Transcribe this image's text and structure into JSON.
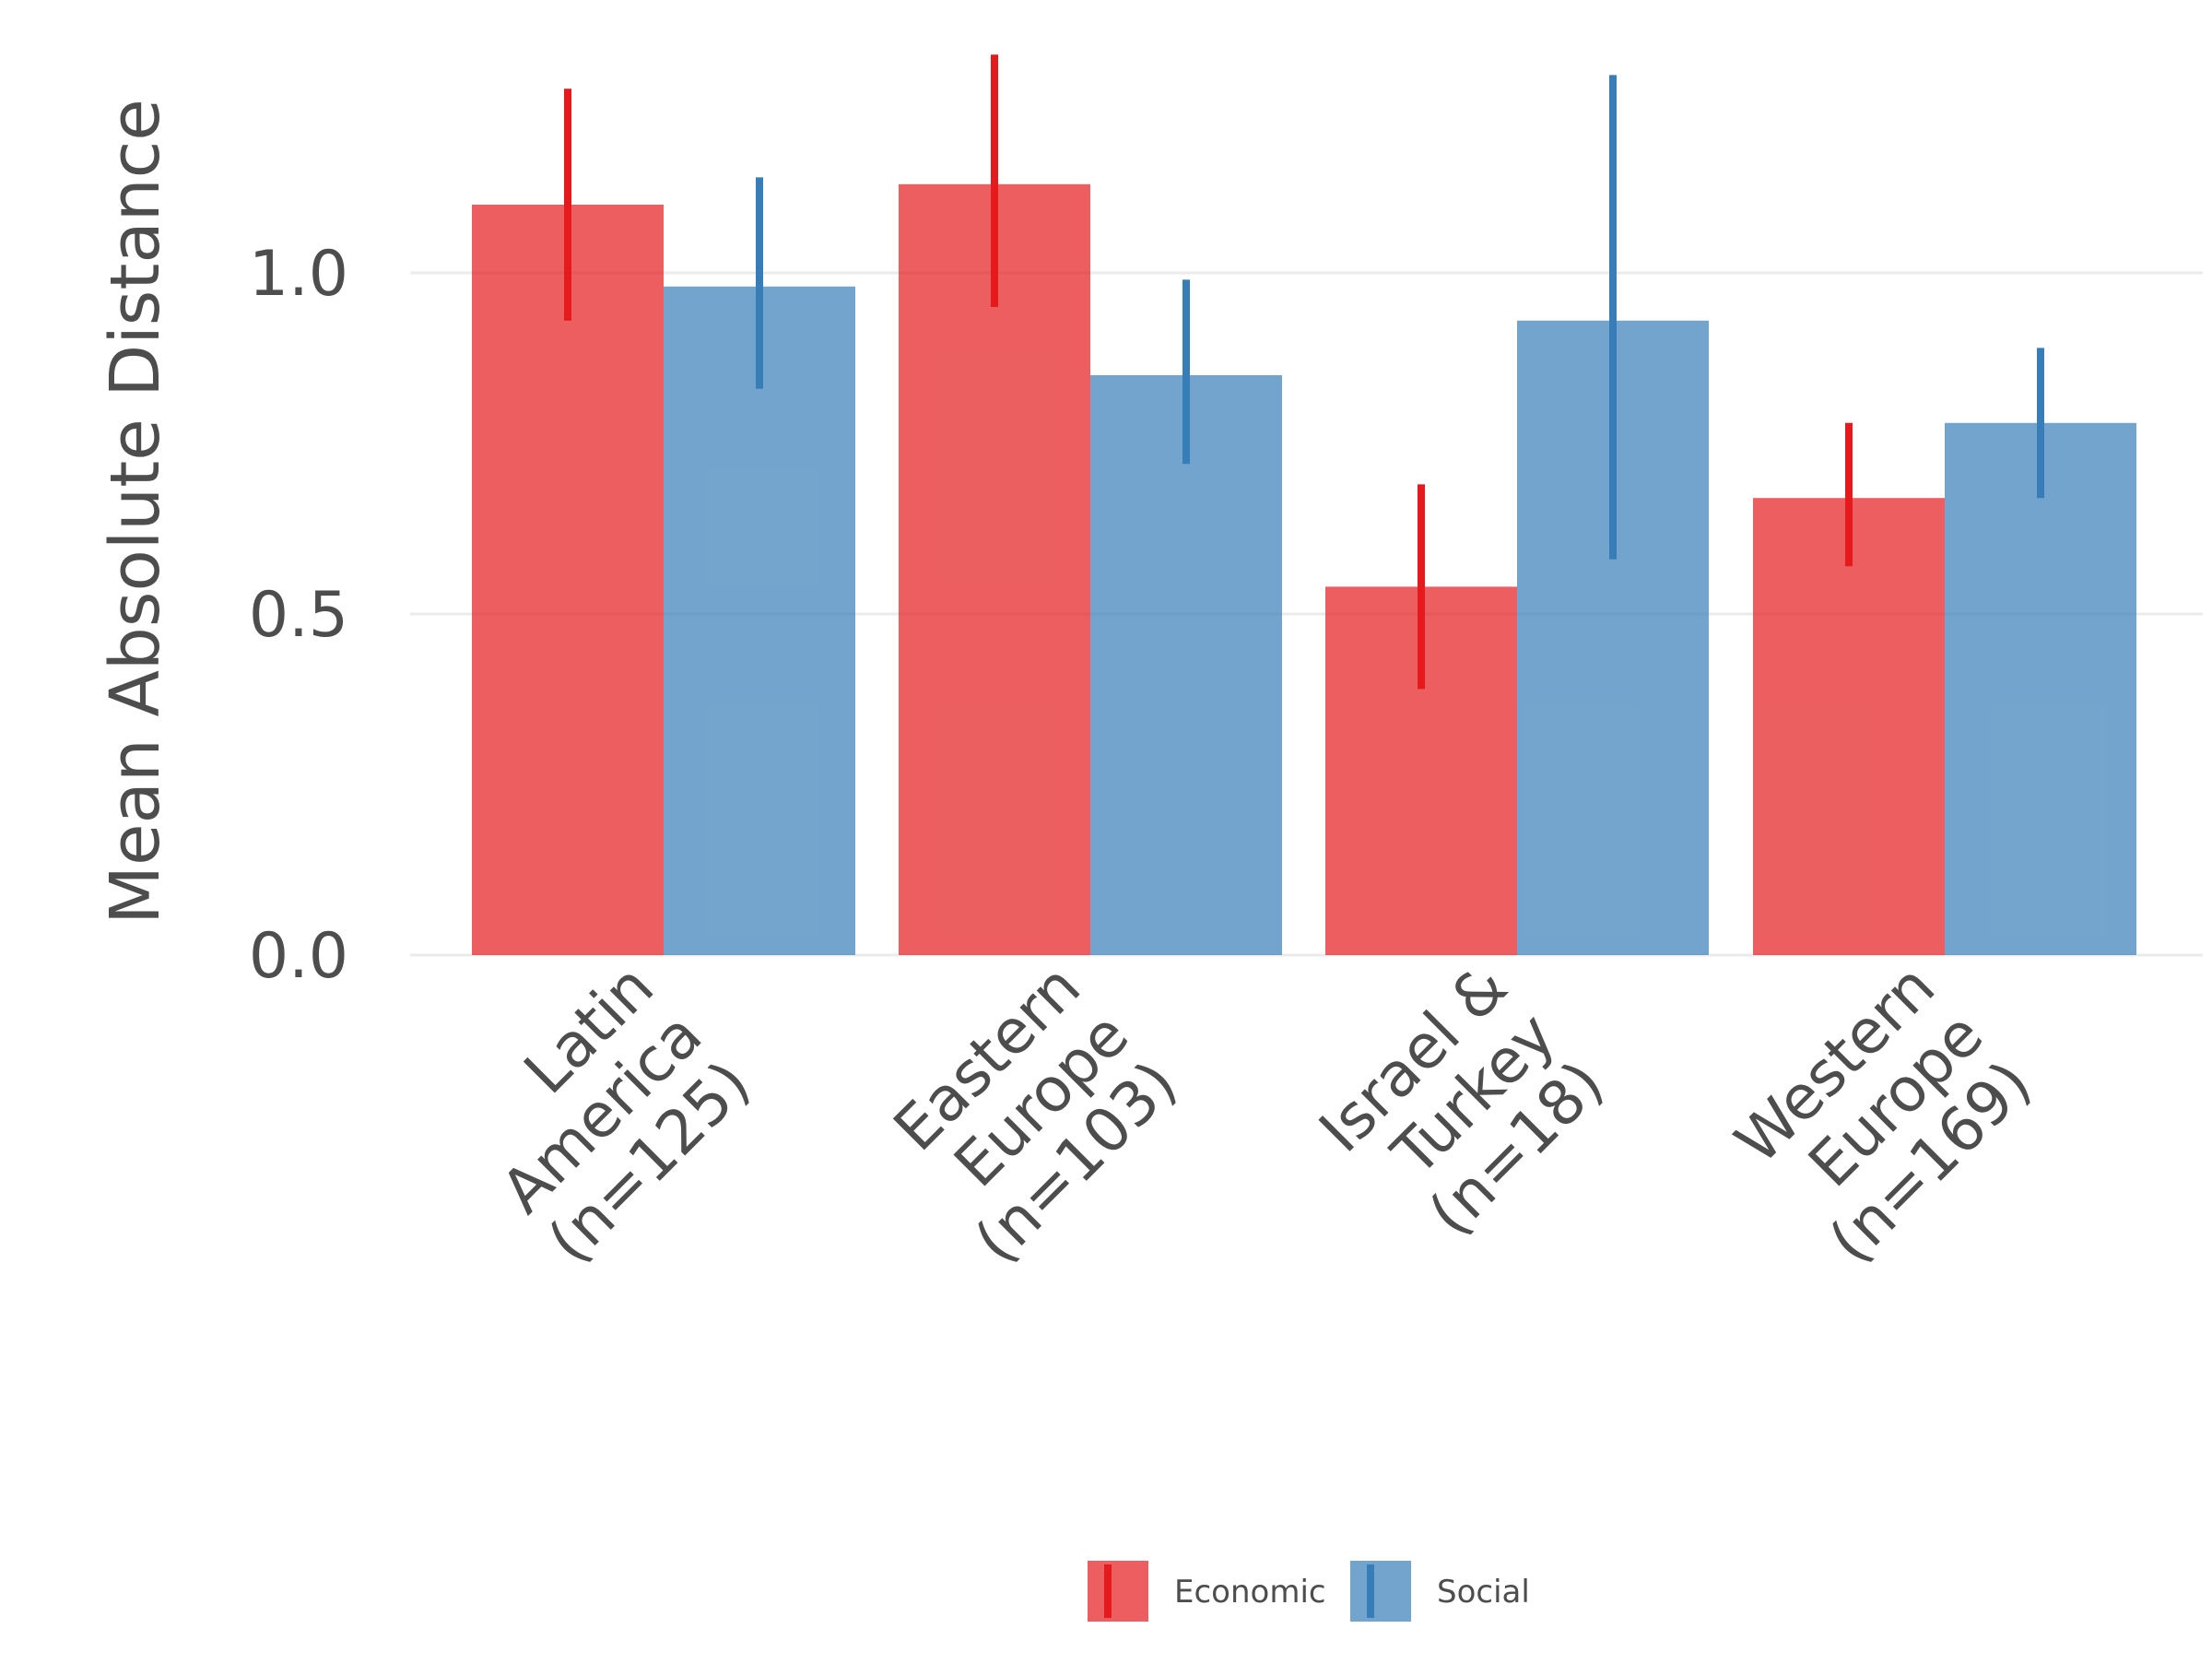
{
  "chart_data": {
    "type": "bar",
    "ylabel": "Mean Absolute Distance",
    "xlabel": "",
    "categories": [
      [
        "Latin",
        "America",
        "(n=125)"
      ],
      [
        "Eastern",
        "Europe",
        "(n=103)"
      ],
      [
        "Israel &",
        "Turkey",
        "(n=18)"
      ],
      [
        "Western",
        "Europe",
        "(n=169)"
      ]
    ],
    "series": [
      {
        "name": "Economic",
        "color": "#e41a1c",
        "values": [
          1.1,
          1.13,
          0.54,
          0.67
        ],
        "error_low": [
          0.93,
          0.95,
          0.39,
          0.57
        ],
        "error_high": [
          1.27,
          1.32,
          0.69,
          0.78
        ]
      },
      {
        "name": "Social",
        "color": "#377eb8",
        "values": [
          0.98,
          0.85,
          0.93,
          0.78
        ],
        "error_low": [
          0.83,
          0.72,
          0.58,
          0.67
        ],
        "error_high": [
          1.14,
          0.99,
          1.29,
          0.89
        ]
      }
    ],
    "ylim": [
      0,
      1.35
    ],
    "yticks": [
      "0.0",
      "0.5",
      "1.0"
    ],
    "ytick_values": [
      0,
      0.5,
      1.0
    ],
    "bar_opacity": 0.7,
    "grid": true,
    "legend_position": "bottom"
  }
}
